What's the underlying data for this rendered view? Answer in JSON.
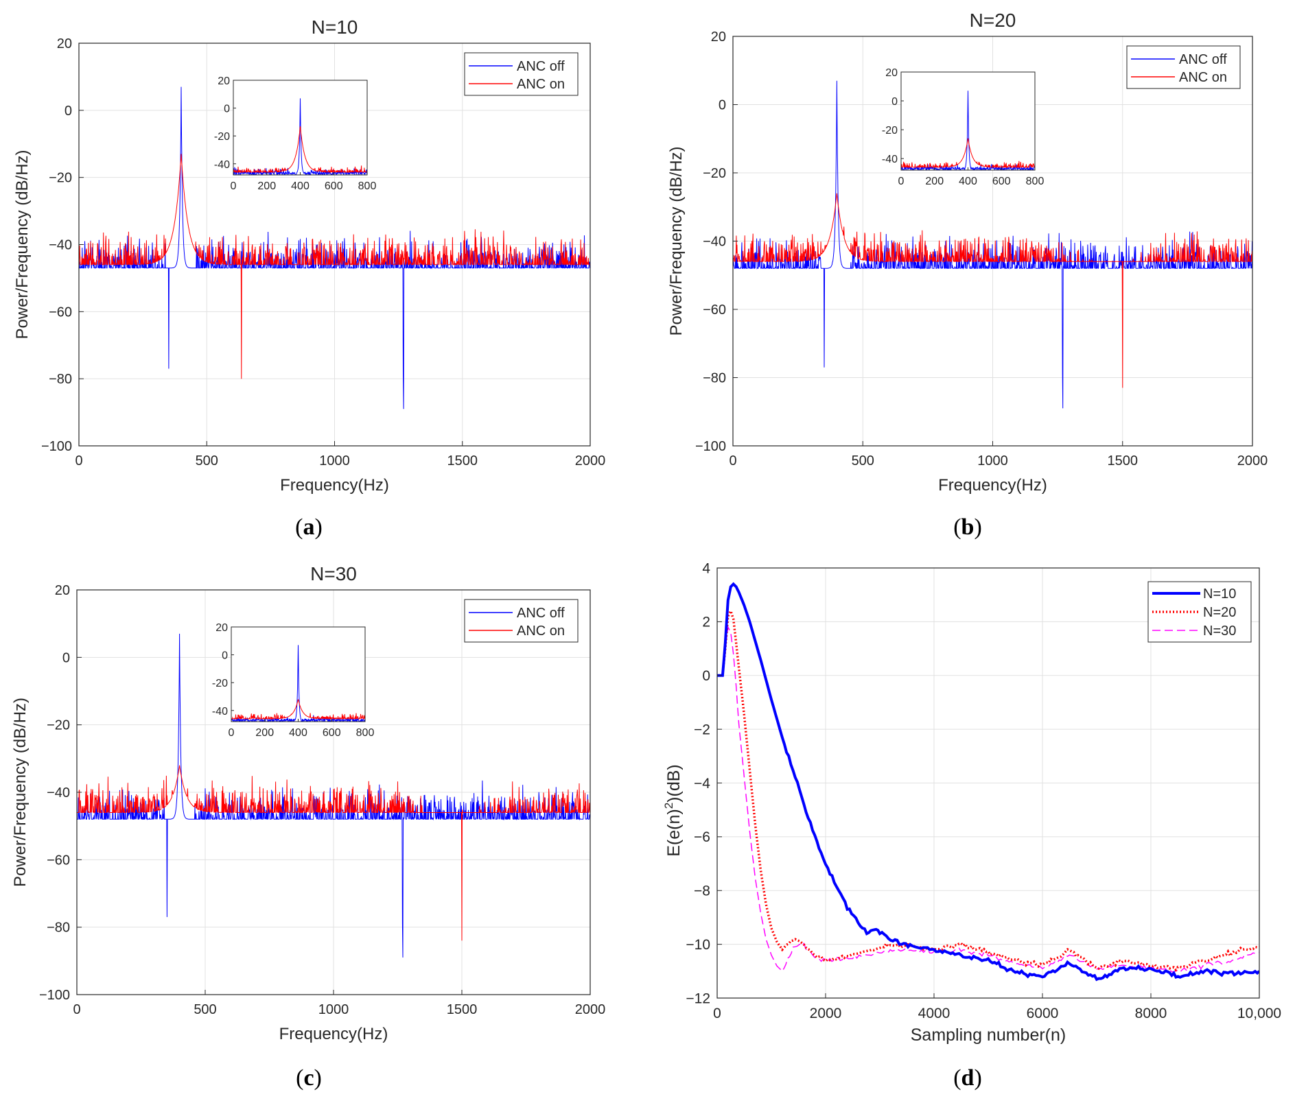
{
  "colors": {
    "anc_off": "#0000ff",
    "anc_on": "#ff0000",
    "n10": "#0000ff",
    "n20": "#ff0000",
    "n30": "#ff00ff",
    "grid": "#e1e1e1",
    "axis": "#262626"
  },
  "chart_data": [
    {
      "id": "a",
      "type": "line",
      "title": "N=10",
      "panel_label": "a",
      "xlabel": "Frequency(Hz)",
      "ylabel": "Power/Frequency (dB/Hz)",
      "xlim": [
        0,
        2000
      ],
      "ylim": [
        -100,
        20
      ],
      "xticks": [
        0,
        500,
        1000,
        1500,
        2000
      ],
      "xtick_labels": [
        "0",
        "500",
        "1000",
        "1500",
        "2000"
      ],
      "yticks": [
        -100,
        -80,
        -60,
        -40,
        -20,
        0,
        20
      ],
      "ytick_labels": [
        "−100",
        "−80",
        "−60",
        "−40",
        "−20",
        "0",
        "20"
      ],
      "grid": true,
      "legend": {
        "location": "top-right",
        "entries": [
          "ANC off",
          "ANC on"
        ]
      },
      "series": [
        {
          "name": "ANC off",
          "noise_mean": -47,
          "noise_spread": 7,
          "peak_x": 400,
          "peak_y": 7,
          "notch_x": 1270,
          "notch_y": -89,
          "dip_x": 352,
          "dip_y": -77
        },
        {
          "name": "ANC on",
          "noise_mean": -46,
          "noise_spread": 7,
          "peak_x": 400,
          "peak_y": -13,
          "deep_x": 635,
          "deep_y": -80
        }
      ],
      "inset": {
        "xlim": [
          0,
          800
        ],
        "ylim": [
          -48,
          20
        ],
        "xticks": [
          0,
          200,
          400,
          600,
          800
        ],
        "xtick_labels": [
          "0",
          "200",
          "400",
          "600",
          "800"
        ],
        "yticks": [
          -40,
          -20,
          0,
          20
        ],
        "ytick_labels": [
          "-40",
          "-20",
          "0",
          "20"
        ]
      }
    },
    {
      "id": "b",
      "type": "line",
      "title": "N=20",
      "panel_label": "b",
      "xlabel": "Frequency(Hz)",
      "ylabel": "Power/Frequency (dB/Hz)",
      "xlim": [
        0,
        2000
      ],
      "ylim": [
        -100,
        20
      ],
      "xticks": [
        0,
        500,
        1000,
        1500,
        2000
      ],
      "xtick_labels": [
        "0",
        "500",
        "1000",
        "1500",
        "2000"
      ],
      "yticks": [
        -100,
        -80,
        -60,
        -40,
        -20,
        0,
        20
      ],
      "ytick_labels": [
        "−100",
        "−80",
        "−60",
        "−40",
        "−20",
        "0",
        "20"
      ],
      "grid": true,
      "legend": {
        "location": "top-right",
        "entries": [
          "ANC off",
          "ANC on"
        ]
      },
      "series": [
        {
          "name": "ANC off",
          "noise_mean": -48,
          "noise_spread": 7,
          "peak_x": 400,
          "peak_y": 7,
          "notch_x": 1270,
          "notch_y": -89,
          "dip_x": 352,
          "dip_y": -77
        },
        {
          "name": "ANC on",
          "noise_mean": -46,
          "noise_spread": 7,
          "peak_x": 400,
          "peak_y": -26,
          "deep_x": 1500,
          "deep_y": -83,
          "valley_x": 1450,
          "valley_depth": 10
        }
      ],
      "inset": {
        "xlim": [
          0,
          800
        ],
        "ylim": [
          -48,
          20
        ],
        "xticks": [
          0,
          200,
          400,
          600,
          800
        ],
        "xtick_labels": [
          "0",
          "200",
          "400",
          "600",
          "800"
        ],
        "yticks": [
          -40,
          -20,
          0,
          20
        ],
        "ytick_labels": [
          "-40",
          "-20",
          "0",
          "20"
        ]
      }
    },
    {
      "id": "c",
      "type": "line",
      "title": "N=30",
      "panel_label": "c",
      "xlabel": "Frequency(Hz)",
      "ylabel": "Power/Frequency (dB/Hz)",
      "xlim": [
        0,
        2000
      ],
      "ylim": [
        -100,
        20
      ],
      "xticks": [
        0,
        500,
        1000,
        1500,
        2000
      ],
      "xtick_labels": [
        "0",
        "500",
        "1000",
        "1500",
        "2000"
      ],
      "yticks": [
        -100,
        -80,
        -60,
        -40,
        -20,
        0,
        20
      ],
      "ytick_labels": [
        "−100",
        "−80",
        "−60",
        "−40",
        "−20",
        "0",
        "20"
      ],
      "grid": true,
      "legend": {
        "location": "top-right",
        "entries": [
          "ANC off",
          "ANC on"
        ]
      },
      "series": [
        {
          "name": "ANC off",
          "noise_mean": -48,
          "noise_spread": 7,
          "peak_x": 400,
          "peak_y": 7,
          "notch_x": 1270,
          "notch_y": -89,
          "dip_x": 352,
          "dip_y": -77
        },
        {
          "name": "ANC on",
          "noise_mean": -46,
          "noise_spread": 7,
          "peak_x": 400,
          "peak_y": -32,
          "deep_x": 1500,
          "deep_y": -84,
          "valley_x": 1480,
          "valley_depth": 10
        }
      ],
      "inset": {
        "xlim": [
          0,
          800
        ],
        "ylim": [
          -48,
          20
        ],
        "xticks": [
          0,
          200,
          400,
          600,
          800
        ],
        "xtick_labels": [
          "0",
          "200",
          "400",
          "600",
          "800"
        ],
        "yticks": [
          -40,
          -20,
          0,
          20
        ],
        "ytick_labels": [
          "-40",
          "-20",
          "0",
          "20"
        ]
      }
    },
    {
      "id": "d",
      "type": "line",
      "title": "",
      "panel_label": "d",
      "xlabel": "Sampling number(n)",
      "ylabel": "E(e(n)²)(dB)",
      "ylabel_base": "E(e(n)",
      "ylabel_sup": "2",
      "ylabel_tail": ")(dB)",
      "xlim": [
        0,
        10000
      ],
      "ylim": [
        -12,
        4
      ],
      "xticks": [
        0,
        2000,
        4000,
        6000,
        8000,
        10000
      ],
      "xtick_labels": [
        "0",
        "2000",
        "4000",
        "6000",
        "8000",
        "10,000"
      ],
      "yticks": [
        -12,
        -10,
        -8,
        -6,
        -4,
        -2,
        0,
        2,
        4
      ],
      "ytick_labels": [
        "−12",
        "−10",
        "−8",
        "−6",
        "−4",
        "−2",
        "0",
        "2",
        "4"
      ],
      "grid": true,
      "legend": {
        "location": "top-right",
        "entries": [
          "N=10",
          "N=20",
          "N=30"
        ]
      },
      "series": [
        {
          "name": "N=10",
          "style": "solid-thick",
          "x": [
            0,
            100,
            150,
            200,
            250,
            300,
            350,
            400,
            500,
            600,
            800,
            1000,
            1200,
            1400,
            1600,
            1800,
            2000,
            2200,
            2400,
            2600,
            2800,
            2900,
            3000,
            3200,
            3400,
            3600,
            4000,
            4500,
            5000,
            5500,
            6000,
            6500,
            7000,
            7500,
            8000,
            8500,
            9000,
            9500,
            10000
          ],
          "y": [
            0,
            0,
            1.2,
            2.8,
            3.3,
            3.4,
            3.3,
            3.1,
            2.6,
            2.0,
            0.6,
            -0.9,
            -2.3,
            -3.5,
            -4.8,
            -6.0,
            -7.0,
            -7.8,
            -8.6,
            -9.2,
            -9.6,
            -9.4,
            -9.6,
            -9.8,
            -10.0,
            -10.1,
            -10.2,
            -10.4,
            -10.6,
            -11.0,
            -11.2,
            -10.7,
            -11.3,
            -10.9,
            -10.9,
            -11.2,
            -11.0,
            -11.1,
            -11.0
          ]
        },
        {
          "name": "N=20",
          "style": "dotted",
          "x": [
            0,
            100,
            150,
            200,
            250,
            300,
            350,
            400,
            500,
            600,
            700,
            800,
            900,
            1000,
            1100,
            1200,
            1400,
            1600,
            1800,
            2000,
            2500,
            3000,
            3500,
            4000,
            4500,
            5000,
            5500,
            6000,
            6500,
            7000,
            7500,
            8000,
            8500,
            9000,
            9500,
            10000
          ],
          "y": [
            0,
            0,
            1.0,
            2.2,
            2.4,
            2.1,
            1.2,
            0.3,
            -1.5,
            -3.5,
            -5.5,
            -7.2,
            -8.5,
            -9.4,
            -9.9,
            -10.2,
            -9.8,
            -10.0,
            -10.4,
            -10.6,
            -10.4,
            -10.1,
            -10.0,
            -10.2,
            -10.0,
            -10.3,
            -10.6,
            -10.8,
            -10.2,
            -10.9,
            -10.6,
            -10.8,
            -10.9,
            -10.6,
            -10.3,
            -10.1
          ]
        },
        {
          "name": "N=30",
          "style": "dashed",
          "x": [
            0,
            100,
            150,
            200,
            250,
            300,
            350,
            400,
            500,
            600,
            700,
            800,
            900,
            1000,
            1100,
            1200,
            1300,
            1400,
            1600,
            1800,
            2000,
            2500,
            3000,
            3500,
            4000,
            4500,
            5000,
            5500,
            6000,
            6500,
            7000,
            7500,
            8000,
            8500,
            9000,
            9500,
            10000
          ],
          "y": [
            0,
            0,
            1.0,
            1.8,
            1.6,
            0.8,
            -0.4,
            -1.8,
            -3.8,
            -5.8,
            -7.5,
            -8.8,
            -9.8,
            -10.4,
            -10.8,
            -11.0,
            -10.6,
            -10.2,
            -10.0,
            -10.5,
            -10.6,
            -10.5,
            -10.3,
            -10.2,
            -10.3,
            -10.2,
            -10.4,
            -10.7,
            -10.9,
            -10.4,
            -10.9,
            -10.8,
            -10.9,
            -11.0,
            -10.8,
            -10.6,
            -10.3
          ]
        }
      ]
    }
  ]
}
